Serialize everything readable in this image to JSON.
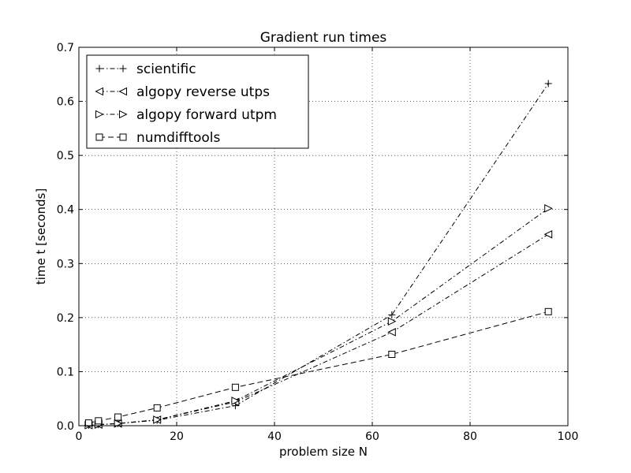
{
  "chart_data": {
    "type": "line",
    "title": "Gradient run times",
    "xlabel": "problem size N",
    "ylabel": "time t [seconds]",
    "xlim": [
      0,
      100
    ],
    "ylim": [
      0,
      0.7
    ],
    "x_ticks": [
      "0",
      "20",
      "40",
      "60",
      "80",
      "100"
    ],
    "y_ticks": [
      "0.0",
      "0.1",
      "0.2",
      "0.3",
      "0.4",
      "0.5",
      "0.6",
      "0.7"
    ],
    "grid": true,
    "legend_placement": "top-left",
    "x": [
      2,
      4,
      8,
      16,
      32,
      64,
      96
    ],
    "series": [
      {
        "name": "scientific",
        "marker": "plus",
        "linestyle": "dashdot",
        "values": [
          0.001,
          0.002,
          0.004,
          0.01,
          0.037,
          0.205,
          0.633
        ]
      },
      {
        "name": "algopy reverse utps",
        "marker": "triangle-left",
        "linestyle": "dashdot",
        "values": [
          0.001,
          0.002,
          0.004,
          0.011,
          0.044,
          0.173,
          0.354
        ]
      },
      {
        "name": "algopy forward utpm",
        "marker": "triangle-right",
        "linestyle": "dashdot",
        "values": [
          0.001,
          0.002,
          0.004,
          0.011,
          0.046,
          0.193,
          0.402
        ]
      },
      {
        "name": "numdifftools",
        "marker": "square",
        "linestyle": "dashed",
        "values": [
          0.005,
          0.009,
          0.016,
          0.033,
          0.071,
          0.132,
          0.211
        ]
      }
    ]
  }
}
